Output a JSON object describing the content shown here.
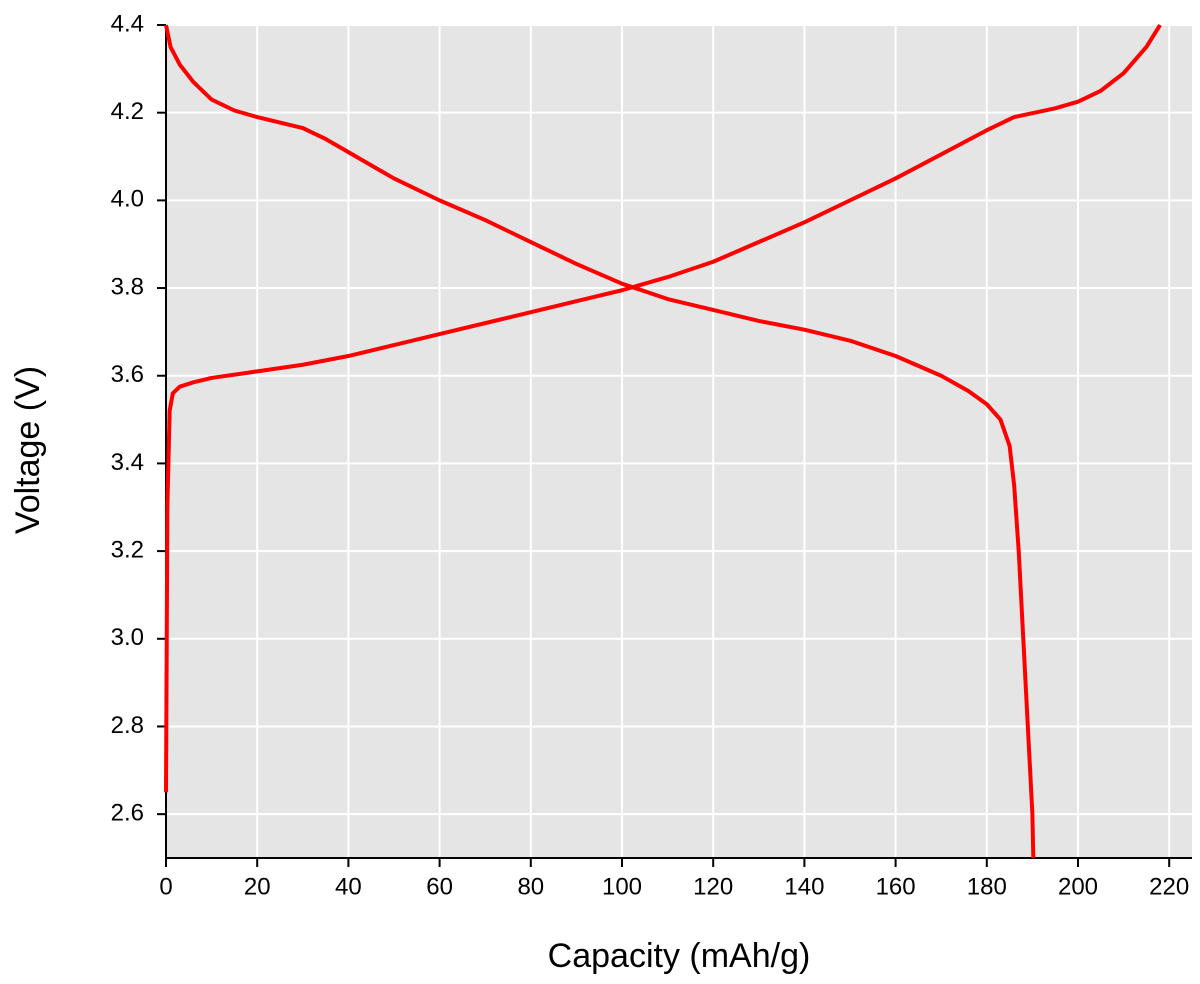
{
  "chart_data": {
    "type": "line",
    "x_label": "Capacity (mAh/g)",
    "y_label": "Voltage (V)",
    "xlim": [
      0,
      225
    ],
    "ylim": [
      2.5,
      4.4
    ],
    "xticks": [
      0,
      20,
      40,
      60,
      80,
      100,
      120,
      140,
      160,
      180,
      200,
      220
    ],
    "yticks": [
      2.6,
      2.8,
      {
        "value": 3,
        "label": "3.0"
      },
      3.2,
      3.4,
      3.6,
      3.8,
      {
        "value": 4,
        "label": "4.0"
      },
      4.2,
      4.4
    ],
    "grid": true,
    "background": "#e5e5e5",
    "series": [
      {
        "color": "#ff0000",
        "x": [
          0,
          0.3,
          0.8,
          1.5,
          3,
          6,
          10,
          20,
          30,
          40,
          50,
          60,
          70,
          80,
          90,
          100,
          110,
          120,
          130,
          140,
          150,
          160,
          170,
          180,
          186,
          195,
          200,
          205,
          210,
          215,
          218
        ],
        "values": [
          2.65,
          3.3,
          3.52,
          3.56,
          3.575,
          3.585,
          3.595,
          3.61,
          3.625,
          3.645,
          3.67,
          3.695,
          3.72,
          3.745,
          3.77,
          3.795,
          3.825,
          3.86,
          3.905,
          3.95,
          4.0,
          4.05,
          4.105,
          4.16,
          4.19,
          4.21,
          4.225,
          4.25,
          4.29,
          4.35,
          4.4
        ]
      },
      {
        "color": "#ff0000",
        "x": [
          0,
          1,
          3,
          6,
          10,
          15,
          20,
          30,
          35,
          40,
          50,
          60,
          70,
          80,
          90,
          100,
          110,
          120,
          130,
          140,
          150,
          160,
          170,
          176,
          180,
          183,
          185,
          186,
          187,
          188,
          189,
          190,
          190.2
        ],
        "values": [
          4.4,
          4.35,
          4.31,
          4.27,
          4.23,
          4.205,
          4.19,
          4.165,
          4.14,
          4.11,
          4.05,
          4.0,
          3.955,
          3.905,
          3.855,
          3.81,
          3.775,
          3.75,
          3.725,
          3.705,
          3.68,
          3.645,
          3.6,
          3.565,
          3.535,
          3.5,
          3.44,
          3.35,
          3.2,
          3.0,
          2.8,
          2.6,
          2.5
        ]
      }
    ]
  }
}
